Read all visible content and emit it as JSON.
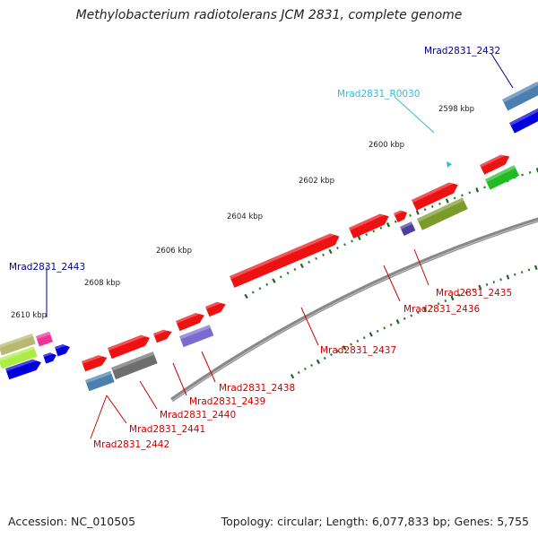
{
  "title": "Methylobacterium radiotolerans JCM 2831, complete genome",
  "footer": {
    "accession": "Accession: NC_010505",
    "topology": "Topology: circular; Length: 6,077,833 bp; Genes: 5,755"
  },
  "ticks": [
    "2598 kbp",
    "2600 kbp",
    "2602 kbp",
    "2604 kbp",
    "2606 kbp",
    "2608 kbp",
    "2610 kbp"
  ],
  "gene_labels": [
    {
      "name": "Mrad2831_2432",
      "color": "#00008b"
    },
    {
      "name": "Mrad2831_R0030",
      "color": "#33bbdd"
    },
    {
      "name": "Mrad2831_2443",
      "color": "#00008b"
    },
    {
      "name": "Mrad2831_2435",
      "color": "#cc0000"
    },
    {
      "name": "Mrad2831_2436",
      "color": "#cc0000"
    },
    {
      "name": "Mrad2831_2437",
      "color": "#cc0000"
    },
    {
      "name": "Mrad2831_2438",
      "color": "#cc0000"
    },
    {
      "name": "Mrad2831_2439",
      "color": "#cc0000"
    },
    {
      "name": "Mrad2831_2440",
      "color": "#cc0000"
    },
    {
      "name": "Mrad2831_2441",
      "color": "#cc0000"
    },
    {
      "name": "Mrad2831_2442",
      "color": "#cc0000"
    }
  ],
  "colors": {
    "backbone": "#888888",
    "tick_minor": "#2e7d2e",
    "tick_major": "#1a6a1a"
  }
}
